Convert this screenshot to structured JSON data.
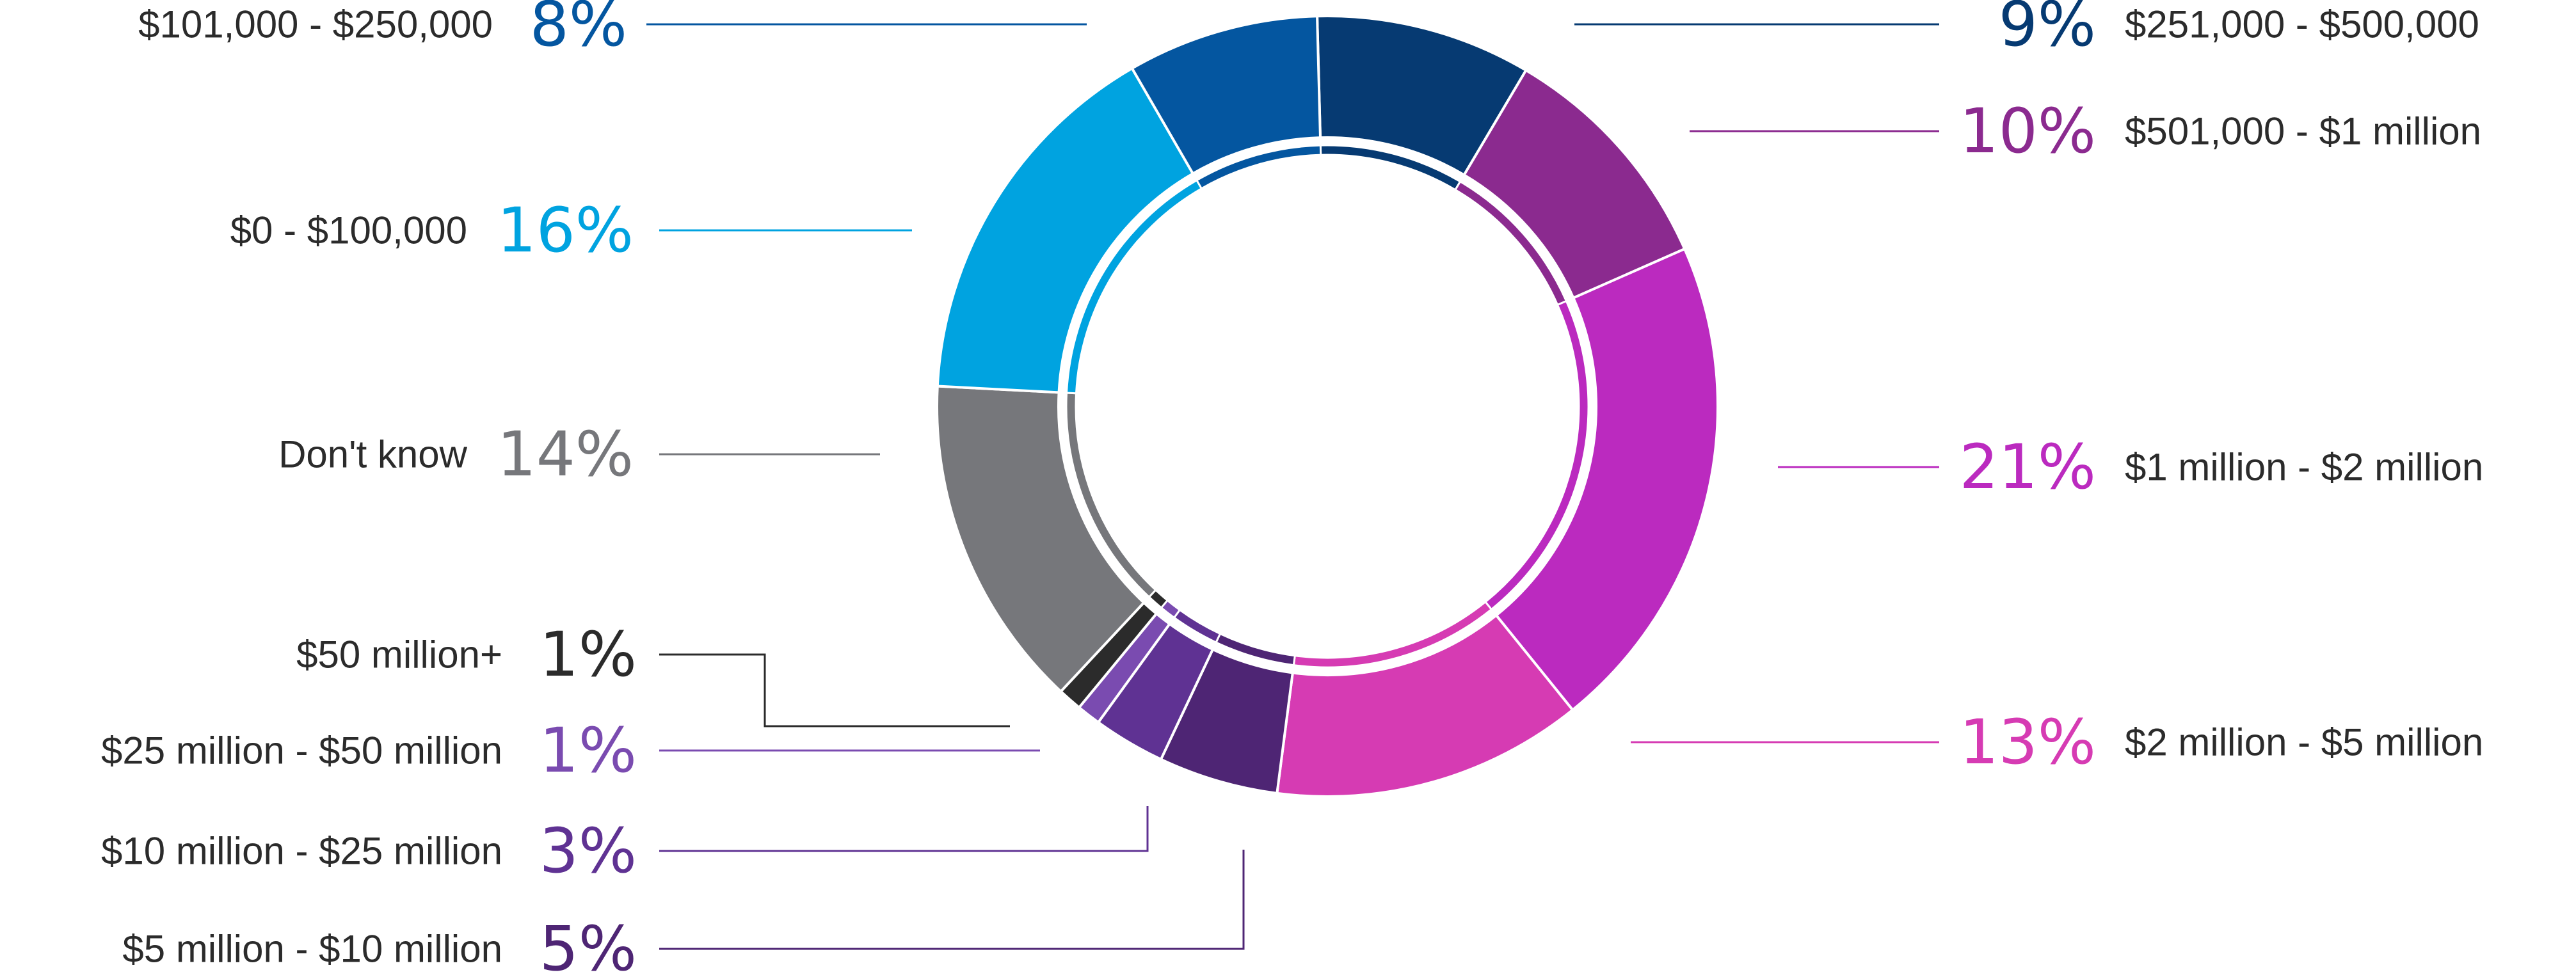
{
  "chart_data": {
    "type": "pie",
    "style": "double donut",
    "slices": [
      {
        "label": "$251,000 - $500,000",
        "value": 9,
        "display": "9%",
        "color": "#063a72"
      },
      {
        "label": "$501,000 - $1 million",
        "value": 10,
        "display": "10%",
        "color": "#8b2a8f"
      },
      {
        "label": "$1 million - $2 million",
        "value": 21,
        "display": "21%",
        "color": "#bb2abf"
      },
      {
        "label": "$2 million - $5 million",
        "value": 13,
        "display": "13%",
        "color": "#d63bb3"
      },
      {
        "label": "$5 million - $10 million",
        "value": 5,
        "display": "5%",
        "color": "#4e2574"
      },
      {
        "label": "$10 million - $25 million",
        "value": 3,
        "display": "3%",
        "color": "#5f3293"
      },
      {
        "label": "$25 million - $50 million",
        "value": 1,
        "display": "1%",
        "color": "#7a4bb0"
      },
      {
        "label": "$50 million+",
        "value": 1,
        "display": "1%",
        "color": "#2b2b2b"
      },
      {
        "label": "Don't know",
        "value": 14,
        "display": "14%",
        "color": "#76777b"
      },
      {
        "label": "$0 - $100,000",
        "value": 16,
        "display": "16%",
        "color": "#00a3e0"
      },
      {
        "label": "$101,000 - $250,000",
        "value": 8,
        "display": "8%",
        "color": "#0456a0"
      }
    ]
  }
}
